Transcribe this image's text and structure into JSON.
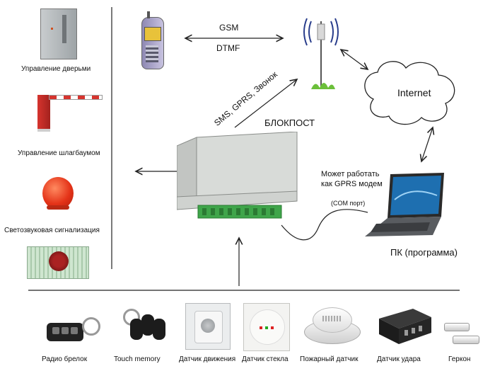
{
  "left_outputs": [
    {
      "label": "Управление дверьми",
      "icon": "door-control-panel-icon"
    },
    {
      "label": "Управление шлагбаумом",
      "icon": "barrier-gate-icon"
    },
    {
      "label": "Светозвуковая сигнализация",
      "icon": "strobe-light-icon"
    },
    {
      "label": "",
      "icon": "siren-box-icon"
    }
  ],
  "links": {
    "gsm": "GSM",
    "dtmf": "DTMF",
    "sms": "SMS, GPRS, Звонок",
    "internet": "Internet",
    "modem_note_line1": "Может работать",
    "modem_note_line2": "как GPRS модем",
    "com_port": "(COM порт)"
  },
  "device": {
    "title": "БЛОКПОСТ"
  },
  "pc": {
    "label": "ПК (программа)"
  },
  "sensors": [
    {
      "label": "Радио брелок",
      "icon": "radio-keyfob-icon"
    },
    {
      "label": "Touch memory",
      "icon": "touch-memory-key-icon"
    },
    {
      "label": "Датчик движения",
      "icon": "motion-sensor-icon"
    },
    {
      "label": "Датчик стекла",
      "icon": "glass-break-sensor-icon"
    },
    {
      "label": "Пожарный датчик",
      "icon": "smoke-detector-icon"
    },
    {
      "label": "Датчик удара",
      "icon": "shock-sensor-icon"
    },
    {
      "label": "Геркон",
      "icon": "reed-switch-icon"
    }
  ],
  "colors": {
    "line": "#222222",
    "barrier_red": "#c8302c",
    "lcd_green": "#3fa54a"
  }
}
